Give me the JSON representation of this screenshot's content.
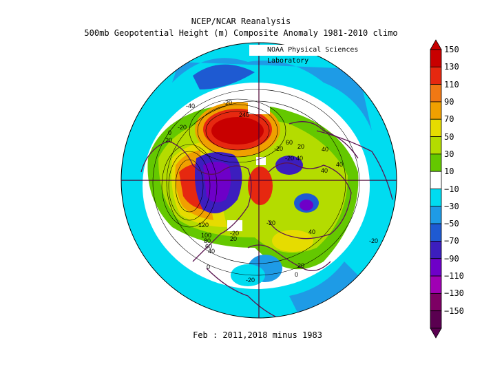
{
  "title_line1": "NCEP/NCAR Reanalysis",
  "title_line2": "500mb Geopotential Height (m) Composite Anomaly 1981-2010 climo",
  "credit": "NOAA Physical Sciences Laboratory",
  "footer": "Feb : 2011,2018 minus 1983",
  "colorbar": {
    "levels": [
      150,
      130,
      110,
      90,
      70,
      50,
      30,
      10,
      -10,
      -30,
      -50,
      -70,
      -90,
      -110,
      -130,
      -150
    ],
    "labels": [
      "150",
      "130",
      "110",
      "90",
      "70",
      "50",
      "30",
      "10",
      "−10",
      "−30",
      "−50",
      "−70",
      "−90",
      "−110",
      "−130",
      "−150"
    ],
    "colors": [
      "#c80000",
      "#e62810",
      "#f07814",
      "#f0a000",
      "#e6dc00",
      "#b4dc00",
      "#64c800",
      "#ffffff",
      "#00dcf0",
      "#1e9be6",
      "#1e5ad2",
      "#3c1ebe",
      "#6e00c8",
      "#a000b4",
      "#7d0064",
      "#5a0050"
    ]
  },
  "contour_labels": [
    "-40",
    "-20",
    "0",
    "20",
    "60",
    "20",
    "40",
    "40",
    "-20",
    "-20",
    "40",
    "120",
    "100",
    "80",
    "60",
    "40",
    "-20",
    "-20",
    "0",
    "20",
    "-20",
    "40",
    "20",
    "-20",
    "0",
    "240",
    "-20",
    "40"
  ]
}
